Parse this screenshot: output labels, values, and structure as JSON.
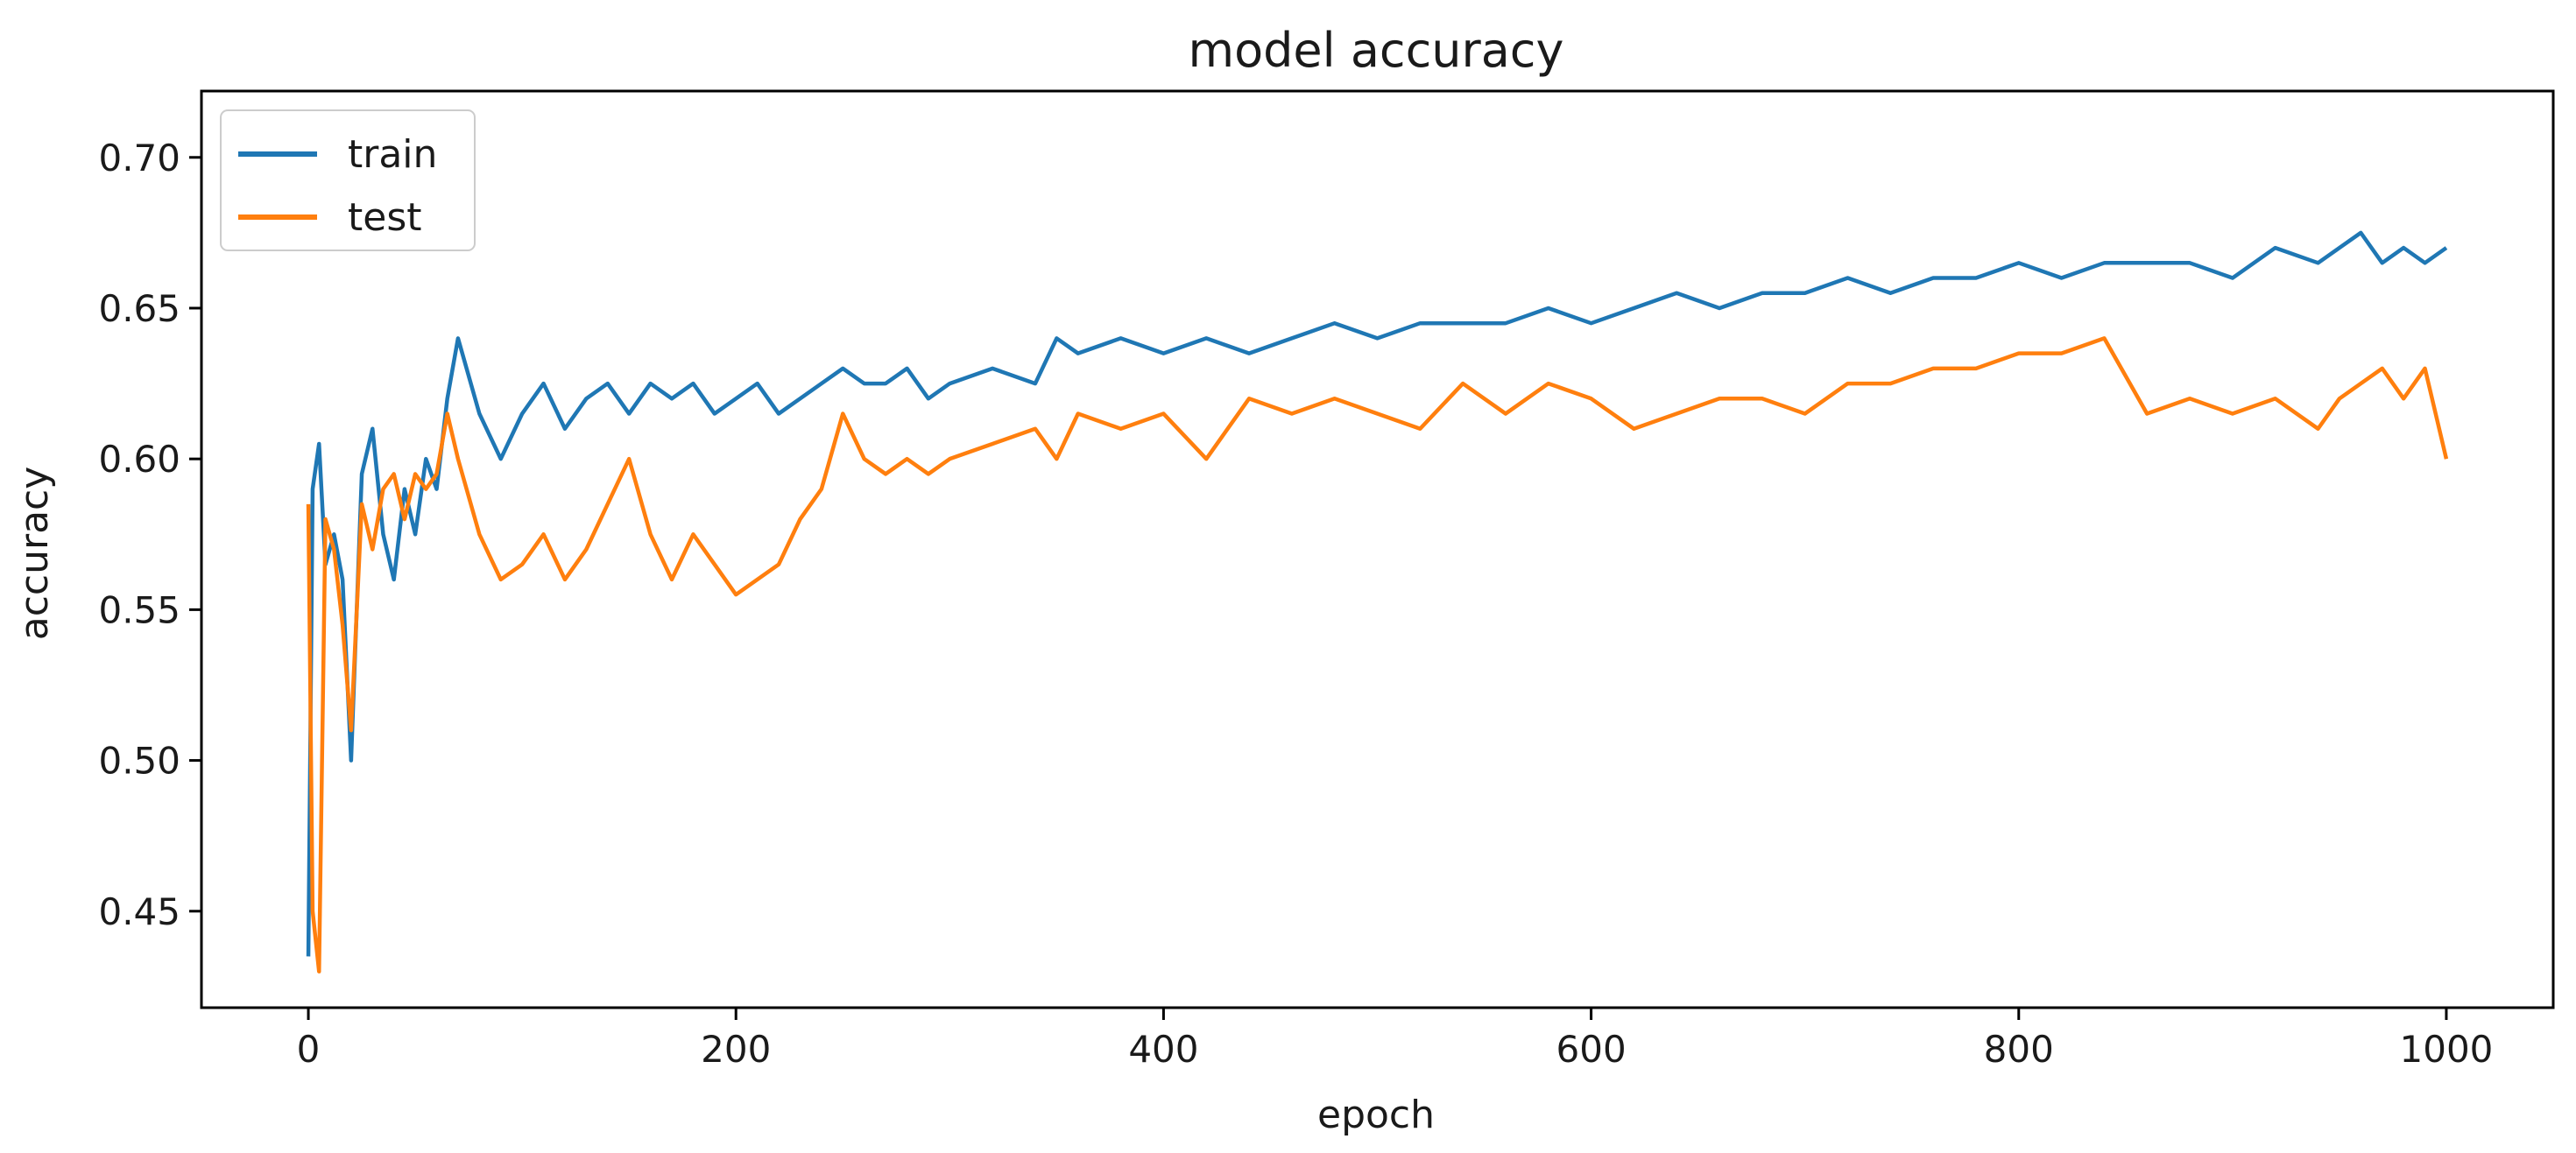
{
  "chart_data": {
    "type": "line",
    "title": "model accuracy",
    "xlabel": "epoch",
    "ylabel": "accuracy",
    "xlim": [
      -50,
      1050
    ],
    "ylim": [
      0.418,
      0.722
    ],
    "xticks": [
      0,
      200,
      400,
      600,
      800,
      1000
    ],
    "yticks": [
      0.45,
      0.5,
      0.55,
      0.6,
      0.65,
      0.7
    ],
    "ytick_labels": [
      "0.45",
      "0.50",
      "0.55",
      "0.60",
      "0.65",
      "0.70"
    ],
    "grid": false,
    "legend_position": "top-left",
    "x": [
      0,
      2,
      5,
      8,
      12,
      16,
      20,
      25,
      30,
      35,
      40,
      45,
      50,
      55,
      60,
      65,
      70,
      80,
      90,
      100,
      110,
      120,
      130,
      140,
      150,
      160,
      170,
      180,
      190,
      200,
      210,
      220,
      230,
      240,
      250,
      260,
      270,
      280,
      290,
      300,
      320,
      340,
      350,
      360,
      380,
      400,
      420,
      440,
      460,
      480,
      500,
      520,
      540,
      560,
      580,
      600,
      620,
      640,
      660,
      680,
      700,
      720,
      740,
      760,
      780,
      800,
      820,
      840,
      860,
      880,
      900,
      920,
      940,
      950,
      960,
      970,
      980,
      990,
      1000
    ],
    "series": [
      {
        "name": "train",
        "color": "#1f77b4",
        "values": [
          0.435,
          0.59,
          0.605,
          0.565,
          0.575,
          0.56,
          0.5,
          0.595,
          0.61,
          0.575,
          0.56,
          0.59,
          0.575,
          0.6,
          0.59,
          0.62,
          0.64,
          0.615,
          0.6,
          0.615,
          0.625,
          0.61,
          0.62,
          0.625,
          0.615,
          0.625,
          0.62,
          0.625,
          0.615,
          0.62,
          0.625,
          0.615,
          0.62,
          0.625,
          0.63,
          0.625,
          0.625,
          0.63,
          0.62,
          0.625,
          0.63,
          0.625,
          0.64,
          0.635,
          0.64,
          0.635,
          0.64,
          0.635,
          0.64,
          0.645,
          0.64,
          0.645,
          0.645,
          0.645,
          0.65,
          0.645,
          0.65,
          0.655,
          0.65,
          0.655,
          0.655,
          0.66,
          0.655,
          0.66,
          0.66,
          0.665,
          0.66,
          0.665,
          0.665,
          0.665,
          0.66,
          0.67,
          0.665,
          0.67,
          0.675,
          0.665,
          0.67,
          0.665,
          0.67
        ]
      },
      {
        "name": "test",
        "color": "#ff7f0e",
        "values": [
          0.585,
          0.45,
          0.43,
          0.58,
          0.57,
          0.545,
          0.51,
          0.585,
          0.57,
          0.59,
          0.595,
          0.58,
          0.595,
          0.59,
          0.595,
          0.615,
          0.6,
          0.575,
          0.56,
          0.565,
          0.575,
          0.56,
          0.57,
          0.585,
          0.6,
          0.575,
          0.56,
          0.575,
          0.565,
          0.555,
          0.56,
          0.565,
          0.58,
          0.59,
          0.615,
          0.6,
          0.595,
          0.6,
          0.595,
          0.6,
          0.605,
          0.61,
          0.6,
          0.615,
          0.61,
          0.615,
          0.6,
          0.62,
          0.615,
          0.62,
          0.615,
          0.61,
          0.625,
          0.615,
          0.625,
          0.62,
          0.61,
          0.615,
          0.62,
          0.62,
          0.615,
          0.625,
          0.625,
          0.63,
          0.63,
          0.635,
          0.635,
          0.64,
          0.615,
          0.62,
          0.615,
          0.62,
          0.61,
          0.62,
          0.625,
          0.63,
          0.62,
          0.63,
          0.6
        ]
      }
    ]
  }
}
